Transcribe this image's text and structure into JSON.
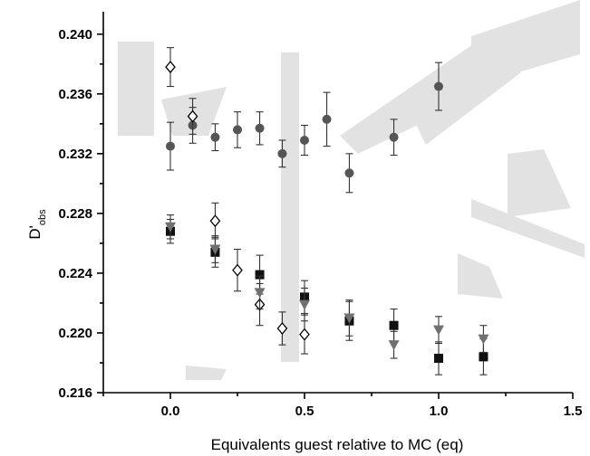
{
  "chart_data": {
    "type": "scatter",
    "title": "",
    "xlabel": "Equivalents guest relative to MC (eq)",
    "ylabel": {
      "main": "D'",
      "sub": "obs"
    },
    "xlim": [
      -0.25,
      1.5
    ],
    "ylim": [
      0.216,
      0.2415
    ],
    "xticks": [
      "0.0",
      "0.5",
      "1.0",
      "1.5"
    ],
    "yticks": [
      "0.216",
      "0.220",
      "0.224",
      "0.228",
      "0.232",
      "0.236",
      "0.240"
    ],
    "grid": false,
    "legend": "none",
    "series": [
      {
        "marker": "circle",
        "color": "#555555",
        "points": [
          {
            "x": 0.0,
            "y": 0.2325,
            "err": 0.0016
          },
          {
            "x": 0.083,
            "y": 0.2339,
            "err": 0.0012
          },
          {
            "x": 0.167,
            "y": 0.2331,
            "err": 0.0009
          },
          {
            "x": 0.25,
            "y": 0.2336,
            "err": 0.0012
          },
          {
            "x": 0.333,
            "y": 0.2337,
            "err": 0.0011
          },
          {
            "x": 0.417,
            "y": 0.232,
            "err": 0.0009
          },
          {
            "x": 0.5,
            "y": 0.2329,
            "err": 0.001
          },
          {
            "x": 0.583,
            "y": 0.2343,
            "err": 0.0018
          },
          {
            "x": 0.667,
            "y": 0.2307,
            "err": 0.0013
          },
          {
            "x": 0.833,
            "y": 0.2331,
            "err": 0.0012
          },
          {
            "x": 1.0,
            "y": 0.2365,
            "err": 0.0016
          }
        ]
      },
      {
        "marker": "diamond-open",
        "color": "#000000",
        "points": [
          {
            "x": 0.0,
            "y": 0.2378,
            "err": 0.0013
          },
          {
            "x": 0.083,
            "y": 0.2345,
            "err": 0.0012
          },
          {
            "x": 0.167,
            "y": 0.2275,
            "err": 0.0012
          },
          {
            "x": 0.25,
            "y": 0.2242,
            "err": 0.0014
          },
          {
            "x": 0.333,
            "y": 0.2219,
            "err": 0.0014
          },
          {
            "x": 0.417,
            "y": 0.2203,
            "err": 0.0011
          },
          {
            "x": 0.5,
            "y": 0.2199,
            "err": 0.0013
          }
        ]
      },
      {
        "marker": "square",
        "color": "#111111",
        "points": [
          {
            "x": 0.0,
            "y": 0.2268,
            "err": 0.0008
          },
          {
            "x": 0.167,
            "y": 0.2254,
            "err": 0.001
          },
          {
            "x": 0.333,
            "y": 0.2239,
            "err": 0.0013
          },
          {
            "x": 0.5,
            "y": 0.2224,
            "err": 0.0011
          },
          {
            "x": 0.667,
            "y": 0.2208,
            "err": 0.0013
          },
          {
            "x": 0.833,
            "y": 0.2205,
            "err": 0.0011
          },
          {
            "x": 1.0,
            "y": 0.2183,
            "err": 0.0011
          },
          {
            "x": 1.167,
            "y": 0.2184,
            "err": 0.0012
          }
        ]
      },
      {
        "marker": "triangle-down",
        "color": "#707070",
        "points": [
          {
            "x": 0.0,
            "y": 0.2271,
            "err": 0.0008
          },
          {
            "x": 0.167,
            "y": 0.2256,
            "err": 0.0009
          },
          {
            "x": 0.333,
            "y": 0.2227,
            "err": 0.0011
          },
          {
            "x": 0.5,
            "y": 0.2219,
            "err": 0.0011
          },
          {
            "x": 0.667,
            "y": 0.221,
            "err": 0.0012
          },
          {
            "x": 0.833,
            "y": 0.2192,
            "err": 0.0009
          },
          {
            "x": 1.0,
            "y": 0.2202,
            "err": 0.0009
          },
          {
            "x": 1.167,
            "y": 0.2196,
            "err": 0.0009
          }
        ]
      }
    ]
  },
  "watermark": {
    "text": "DRAFT",
    "color": "#e2e2e2"
  }
}
